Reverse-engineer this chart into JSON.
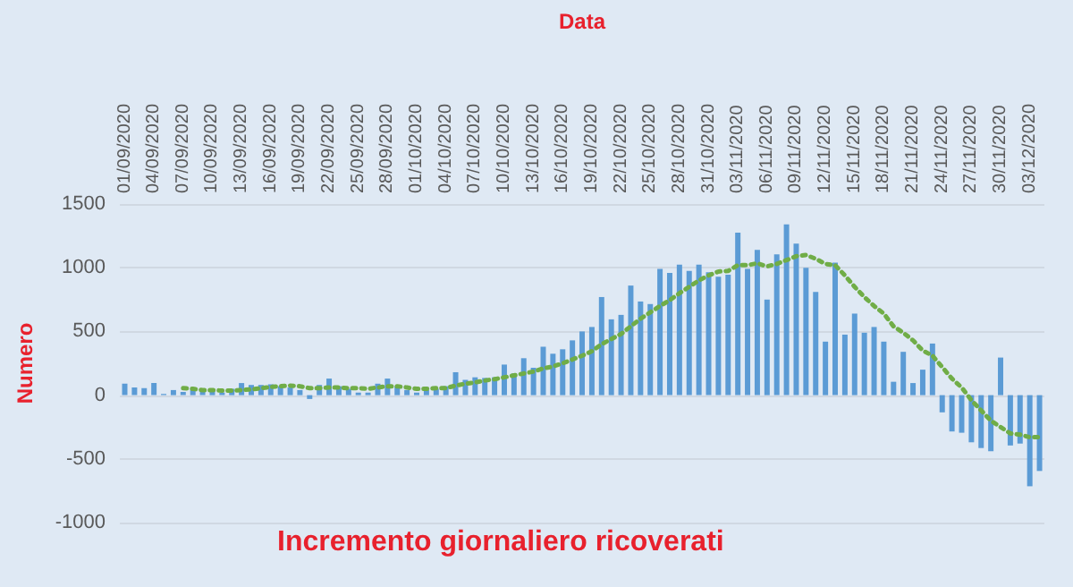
{
  "chart_data": {
    "type": "bar",
    "title": "Incremento giornaliero ricoverati",
    "xlabel": "Data",
    "ylabel": "Numero",
    "categories": [
      "01/09/2020",
      null,
      null,
      "04/09/2020",
      null,
      null,
      "07/09/2020",
      null,
      null,
      "10/09/2020",
      null,
      null,
      "13/09/2020",
      null,
      null,
      "16/09/2020",
      null,
      null,
      "19/09/2020",
      null,
      null,
      "22/09/2020",
      null,
      null,
      "25/09/2020",
      null,
      null,
      "28/09/2020",
      null,
      null,
      "01/10/2020",
      null,
      null,
      "04/10/2020",
      null,
      null,
      "07/10/2020",
      null,
      null,
      "10/10/2020",
      null,
      null,
      "13/10/2020",
      null,
      null,
      "16/10/2020",
      null,
      null,
      "19/10/2020",
      null,
      null,
      "22/10/2020",
      null,
      null,
      "25/10/2020",
      null,
      null,
      "28/10/2020",
      null,
      null,
      "31/10/2020",
      null,
      null,
      "03/11/2020",
      null,
      null,
      "06/11/2020",
      null,
      null,
      "09/11/2020",
      null,
      null,
      "12/11/2020",
      null,
      null,
      "15/11/2020",
      null,
      null,
      "18/11/2020",
      null,
      null,
      "21/11/2020",
      null,
      null,
      "24/11/2020",
      null,
      null,
      "27/11/2020",
      null,
      null,
      "30/11/2020",
      null,
      null,
      "03/12/2020",
      null
    ],
    "series": [
      {
        "color": "#5b9bd5",
        "values": [
          90,
          60,
          55,
          95,
          10,
          40,
          25,
          45,
          35,
          45,
          20,
          50,
          95,
          80,
          80,
          85,
          70,
          60,
          40,
          -30,
          80,
          130,
          70,
          50,
          20,
          20,
          90,
          130,
          70,
          40,
          20,
          40,
          50,
          70,
          180,
          120,
          140,
          135,
          140,
          240,
          170,
          290,
          215,
          380,
          325,
          360,
          430,
          500,
          535,
          770,
          595,
          630,
          860,
          735,
          715,
          990,
          960,
          1025,
          975,
          1025,
          965,
          930,
          945,
          1275,
          990,
          1140,
          750,
          1105,
          1340,
          1190,
          1000,
          810,
          420,
          1040,
          475,
          640,
          490,
          535,
          420,
          105,
          340,
          95,
          200,
          405,
          -135,
          -285,
          -295,
          -370,
          -415,
          -440,
          295,
          -395,
          -380,
          -715,
          -595
        ]
      },
      {
        "type": "line",
        "color": "#70ad47",
        "line_style": "dotted",
        "values": [
          null,
          null,
          null,
          null,
          null,
          null,
          55,
          50,
          40,
          40,
          35,
          35,
          40,
          45,
          55,
          65,
          70,
          75,
          70,
          55,
          55,
          60,
          60,
          55,
          55,
          50,
          60,
          70,
          70,
          60,
          50,
          50,
          55,
          55,
          75,
          90,
          100,
          115,
          125,
          140,
          155,
          170,
          185,
          210,
          225,
          250,
          280,
          310,
          345,
          400,
          440,
          480,
          540,
          600,
          650,
          700,
          745,
          800,
          850,
          900,
          940,
          970,
          975,
          1020,
          1020,
          1035,
          1010,
          1030,
          1060,
          1090,
          1100,
          1070,
          1030,
          1020,
          940,
          850,
          770,
          700,
          640,
          540,
          490,
          430,
          350,
          310,
          220,
          130,
          60,
          -40,
          -120,
          -200,
          -250,
          -300,
          -310,
          -330,
          -330
        ]
      }
    ],
    "ylim": [
      -1000,
      1500
    ],
    "yticks": [
      -1000,
      -500,
      0,
      500,
      1000,
      1500
    ],
    "grid": "y",
    "marker": "none"
  }
}
